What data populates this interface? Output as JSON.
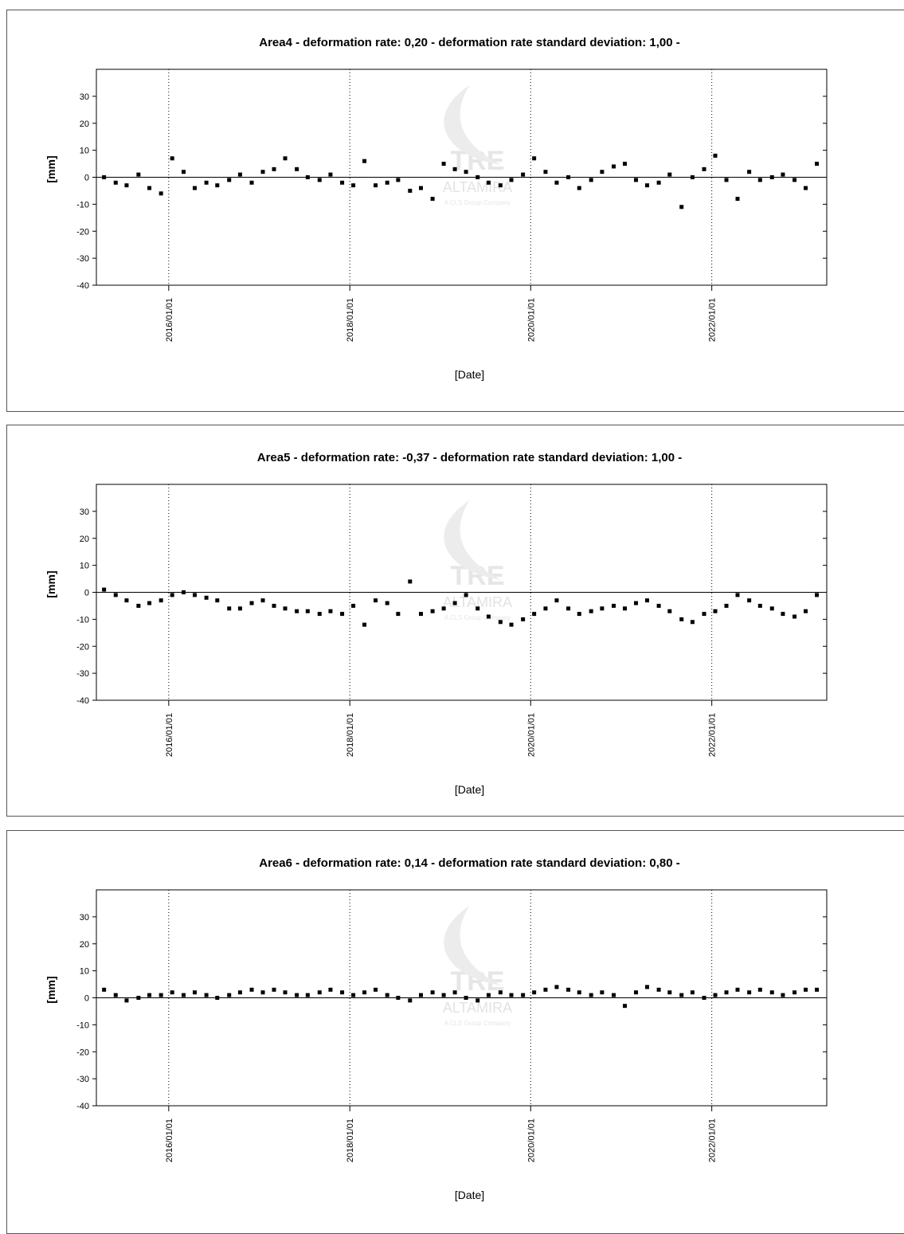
{
  "chart_data": [
    {
      "type": "scatter",
      "title": "Area4 - deformation rate: 0,20 - deformation rate standard deviation: 1,00 -",
      "xlabel": "[Date]",
      "ylabel": "[mm]",
      "color": "#000000",
      "watermark": [
        "TRE",
        "ALTAMIRA",
        "A CLS Group Company"
      ],
      "x": [
        "2015/04/15",
        "2015/06/01",
        "2015/07/15",
        "2015/09/01",
        "2015/10/15",
        "2015/12/01",
        "2016/01/15",
        "2016/03/01",
        "2016/04/15",
        "2016/06/01",
        "2016/07/15",
        "2016/09/01",
        "2016/10/15",
        "2016/12/01",
        "2017/01/15",
        "2017/03/01",
        "2017/04/15",
        "2017/06/01",
        "2017/07/15",
        "2017/09/01",
        "2017/10/15",
        "2017/12/01",
        "2018/01/15",
        "2018/03/01",
        "2018/04/15",
        "2018/06/01",
        "2018/07/15",
        "2018/09/01",
        "2018/10/15",
        "2018/12/01",
        "2019/01/15",
        "2019/03/01",
        "2019/04/15",
        "2019/06/01",
        "2019/07/15",
        "2019/09/01",
        "2019/10/15",
        "2019/12/01",
        "2020/01/15",
        "2020/03/01",
        "2020/04/15",
        "2020/06/01",
        "2020/07/15",
        "2020/09/01",
        "2020/10/15",
        "2020/12/01",
        "2021/01/15",
        "2021/03/01",
        "2021/04/15",
        "2021/06/01",
        "2021/07/15",
        "2021/09/01",
        "2021/10/15",
        "2021/12/01",
        "2022/01/15",
        "2022/03/01",
        "2022/04/15",
        "2022/06/01",
        "2022/07/15",
        "2022/09/01",
        "2022/10/15",
        "2022/12/01",
        "2023/01/15",
        "2023/03/01"
      ],
      "values": [
        0,
        -2,
        -3,
        1,
        -4,
        -6,
        7,
        2,
        -4,
        -2,
        -3,
        -1,
        1,
        -2,
        2,
        3,
        7,
        3,
        0,
        -1,
        1,
        -2,
        -3,
        6,
        -3,
        -2,
        -1,
        -5,
        -4,
        -8,
        5,
        3,
        2,
        0,
        -2,
        -3,
        -1,
        1,
        7,
        2,
        -2,
        0,
        -4,
        -1,
        2,
        4,
        5,
        -1,
        -3,
        -2,
        1,
        -11,
        0,
        3,
        8,
        -1,
        -8,
        2,
        -1,
        0,
        1,
        -1,
        -4,
        5
      ],
      "xlim": [
        "2015/03/15",
        "2023/04/10"
      ],
      "xticks": [
        "2016/01/01",
        "2018/01/01",
        "2020/01/01",
        "2022/01/01"
      ],
      "ylim": [
        -40,
        40
      ],
      "yticks": [
        -40,
        -30,
        -20,
        -10,
        0,
        10,
        20,
        30
      ],
      "grid": true
    },
    {
      "type": "scatter",
      "title": "Area5 - deformation rate: -0,37 - deformation rate standard deviation: 1,00 -",
      "xlabel": "[Date]",
      "ylabel": "[mm]",
      "color": "#000000",
      "watermark": [
        "TRE",
        "ALTAMIRA",
        "A CLS Group Company"
      ],
      "x": [
        "2015/04/15",
        "2015/06/01",
        "2015/07/15",
        "2015/09/01",
        "2015/10/15",
        "2015/12/01",
        "2016/01/15",
        "2016/03/01",
        "2016/04/15",
        "2016/06/01",
        "2016/07/15",
        "2016/09/01",
        "2016/10/15",
        "2016/12/01",
        "2017/01/15",
        "2017/03/01",
        "2017/04/15",
        "2017/06/01",
        "2017/07/15",
        "2017/09/01",
        "2017/10/15",
        "2017/12/01",
        "2018/01/15",
        "2018/03/01",
        "2018/04/15",
        "2018/06/01",
        "2018/07/15",
        "2018/09/01",
        "2018/10/15",
        "2018/12/01",
        "2019/01/15",
        "2019/03/01",
        "2019/04/15",
        "2019/06/01",
        "2019/07/15",
        "2019/09/01",
        "2019/10/15",
        "2019/12/01",
        "2020/01/15",
        "2020/03/01",
        "2020/04/15",
        "2020/06/01",
        "2020/07/15",
        "2020/09/01",
        "2020/10/15",
        "2020/12/01",
        "2021/01/15",
        "2021/03/01",
        "2021/04/15",
        "2021/06/01",
        "2021/07/15",
        "2021/09/01",
        "2021/10/15",
        "2021/12/01",
        "2022/01/15",
        "2022/03/01",
        "2022/04/15",
        "2022/06/01",
        "2022/07/15",
        "2022/09/01",
        "2022/10/15",
        "2022/12/01",
        "2023/01/15",
        "2023/03/01"
      ],
      "values": [
        1,
        -1,
        -3,
        -5,
        -4,
        -3,
        -1,
        0,
        -1,
        -2,
        -3,
        -6,
        -6,
        -4,
        -3,
        -5,
        -6,
        -7,
        -7,
        -8,
        -7,
        -8,
        -5,
        -12,
        -3,
        -4,
        -8,
        4,
        -8,
        -7,
        -6,
        -4,
        -1,
        -6,
        -9,
        -11,
        -12,
        -10,
        -8,
        -6,
        -3,
        -6,
        -8,
        -7,
        -6,
        -5,
        -6,
        -4,
        -3,
        -5,
        -7,
        -10,
        -11,
        -8,
        -7,
        -5,
        -1,
        -3,
        -5,
        -6,
        -8,
        -9,
        -7,
        -1
      ],
      "xlim": [
        "2015/03/15",
        "2023/04/10"
      ],
      "xticks": [
        "2016/01/01",
        "2018/01/01",
        "2020/01/01",
        "2022/01/01"
      ],
      "ylim": [
        -40,
        40
      ],
      "yticks": [
        -40,
        -30,
        -20,
        -10,
        0,
        10,
        20,
        30
      ],
      "grid": true
    },
    {
      "type": "scatter",
      "title": "Area6 - deformation rate: 0,14 - deformation rate standard deviation: 0,80 -",
      "xlabel": "[Date]",
      "ylabel": "[mm]",
      "color": "#000000",
      "watermark": [
        "TRE",
        "ALTAMIRA",
        "A CLS Group Company"
      ],
      "x": [
        "2015/04/15",
        "2015/06/01",
        "2015/07/15",
        "2015/09/01",
        "2015/10/15",
        "2015/12/01",
        "2016/01/15",
        "2016/03/01",
        "2016/04/15",
        "2016/06/01",
        "2016/07/15",
        "2016/09/01",
        "2016/10/15",
        "2016/12/01",
        "2017/01/15",
        "2017/03/01",
        "2017/04/15",
        "2017/06/01",
        "2017/07/15",
        "2017/09/01",
        "2017/10/15",
        "2017/12/01",
        "2018/01/15",
        "2018/03/01",
        "2018/04/15",
        "2018/06/01",
        "2018/07/15",
        "2018/09/01",
        "2018/10/15",
        "2018/12/01",
        "2019/01/15",
        "2019/03/01",
        "2019/04/15",
        "2019/06/01",
        "2019/07/15",
        "2019/09/01",
        "2019/10/15",
        "2019/12/01",
        "2020/01/15",
        "2020/03/01",
        "2020/04/15",
        "2020/06/01",
        "2020/07/15",
        "2020/09/01",
        "2020/10/15",
        "2020/12/01",
        "2021/01/15",
        "2021/03/01",
        "2021/04/15",
        "2021/06/01",
        "2021/07/15",
        "2021/09/01",
        "2021/10/15",
        "2021/12/01",
        "2022/01/15",
        "2022/03/01",
        "2022/04/15",
        "2022/06/01",
        "2022/07/15",
        "2022/09/01",
        "2022/10/15",
        "2022/12/01",
        "2023/01/15",
        "2023/03/01"
      ],
      "values": [
        3,
        1,
        -1,
        0,
        1,
        1,
        2,
        1,
        2,
        1,
        0,
        1,
        2,
        3,
        2,
        3,
        2,
        1,
        1,
        2,
        3,
        2,
        1,
        2,
        3,
        1,
        0,
        -1,
        1,
        2,
        1,
        2,
        0,
        -1,
        1,
        2,
        1,
        1,
        2,
        3,
        4,
        3,
        2,
        1,
        2,
        1,
        -3,
        2,
        4,
        3,
        2,
        1,
        2,
        0,
        1,
        2,
        3,
        2,
        3,
        2,
        1,
        2,
        3,
        3
      ],
      "xlim": [
        "2015/03/15",
        "2023/04/10"
      ],
      "xticks": [
        "2016/01/01",
        "2018/01/01",
        "2020/01/01",
        "2022/01/01"
      ],
      "ylim": [
        -40,
        40
      ],
      "yticks": [
        -40,
        -30,
        -20,
        -10,
        0,
        10,
        20,
        30
      ],
      "grid": true
    }
  ]
}
